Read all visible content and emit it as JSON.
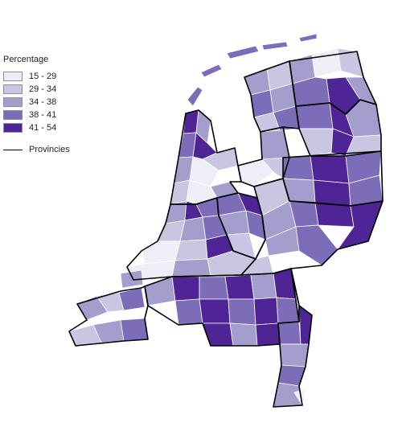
{
  "legend": {
    "title": "Percentage",
    "classes": [
      {
        "label": "15 - 29",
        "color": "#efedf6"
      },
      {
        "label": "29 - 34",
        "color": "#c9c6e1"
      },
      {
        "label": "34 - 38",
        "color": "#a39ecc"
      },
      {
        "label": "38 - 41",
        "color": "#7d6cb7"
      },
      {
        "label": "41 - 54",
        "color": "#4f2494"
      }
    ],
    "provinces_label": "Provincies"
  },
  "colors": {
    "border_municipality": "#ffffff",
    "border_province": "#000000",
    "sea": "#ffffff"
  }
}
